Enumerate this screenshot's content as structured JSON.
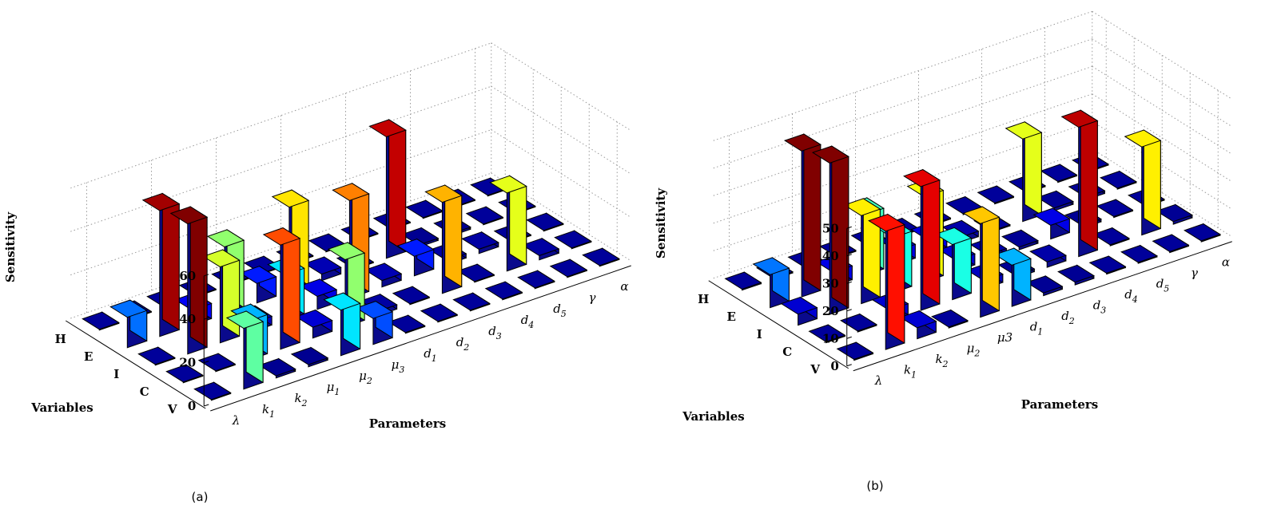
{
  "chart_data": [
    {
      "type": "bar3d",
      "caption": "(a)",
      "xlabel": "Parameters",
      "ylabel": "Variables",
      "zlabel": "Sensitivity",
      "zlim": [
        0,
        60
      ],
      "zticks": [
        "0",
        "20",
        "40",
        "60"
      ],
      "parameters": [
        "λ",
        "k1",
        "k2",
        "μ1",
        "μ2",
        "μ3",
        "d1",
        "d2",
        "d3",
        "d4",
        "d5",
        "γ",
        "α"
      ],
      "parameter_labels": [
        {
          "base": "λ",
          "sub": ""
        },
        {
          "base": "k",
          "sub": "1"
        },
        {
          "base": "k",
          "sub": "2"
        },
        {
          "base": "μ",
          "sub": "1"
        },
        {
          "base": "μ",
          "sub": "2"
        },
        {
          "base": "μ",
          "sub": "3"
        },
        {
          "base": "d",
          "sub": "1"
        },
        {
          "base": "d",
          "sub": "2"
        },
        {
          "base": "d",
          "sub": "3"
        },
        {
          "base": "d",
          "sub": "4"
        },
        {
          "base": "d",
          "sub": "5"
        },
        {
          "base": "γ",
          "sub": ""
        },
        {
          "base": "α",
          "sub": ""
        }
      ],
      "variables": [
        "H",
        "E",
        "I",
        "C",
        "V"
      ],
      "values": [
        [
          0,
          0,
          0,
          0,
          0,
          0,
          0,
          0,
          0,
          0,
          0,
          0,
          0
        ],
        [
          14,
          58,
          7,
          31,
          9,
          39,
          3,
          0,
          56,
          1,
          1,
          0,
          0
        ],
        [
          0,
          60,
          35,
          4,
          21,
          6,
          45,
          3,
          9,
          2,
          2,
          0,
          0
        ],
        [
          0,
          0,
          18,
          48,
          5,
          31,
          2,
          0,
          42,
          0,
          36,
          2,
          0
        ],
        [
          0,
          28,
          1,
          1,
          21,
          12,
          0,
          0,
          0,
          0,
          0,
          0,
          0
        ]
      ]
    },
    {
      "type": "bar3d",
      "caption": "(b)",
      "xlabel": "Parameters",
      "ylabel": "Variables",
      "zlabel": "Sensitivity",
      "zlim": [
        0,
        50
      ],
      "zticks": [
        "0",
        "10",
        "20",
        "30",
        "40",
        "50"
      ],
      "parameters": [
        "λ",
        "k1",
        "k2",
        "μ2",
        "μ3",
        "d1",
        "d2",
        "d3",
        "d4",
        "d5",
        "γ",
        "α"
      ],
      "parameter_labels": [
        {
          "base": "λ",
          "sub": ""
        },
        {
          "base": "k",
          "sub": "1"
        },
        {
          "base": "k",
          "sub": "2"
        },
        {
          "base": "μ",
          "sub": "2"
        },
        {
          "base": "μ3",
          "sub": ""
        },
        {
          "base": "d",
          "sub": "1"
        },
        {
          "base": "d",
          "sub": "2"
        },
        {
          "base": "d",
          "sub": "3"
        },
        {
          "base": "d",
          "sub": "4"
        },
        {
          "base": "d",
          "sub": "5"
        },
        {
          "base": "γ",
          "sub": ""
        },
        {
          "base": "α",
          "sub": ""
        }
      ],
      "variables": [
        "H",
        "E",
        "I",
        "C",
        "V"
      ],
      "values": [
        [
          0,
          0,
          0,
          0,
          0,
          0,
          0,
          0,
          0,
          0,
          0,
          0
        ],
        [
          12,
          53,
          5,
          22,
          5,
          5,
          2,
          0,
          30,
          1,
          1,
          0
        ],
        [
          4,
          55,
          32,
          20,
          31,
          4,
          2,
          1,
          5,
          1,
          0,
          0
        ],
        [
          0,
          0,
          4,
          45,
          20,
          3,
          1,
          2,
          47,
          0,
          32,
          1
        ],
        [
          0,
          43,
          4,
          0,
          34,
          15,
          1,
          1,
          0,
          0,
          0,
          0
        ]
      ]
    }
  ]
}
